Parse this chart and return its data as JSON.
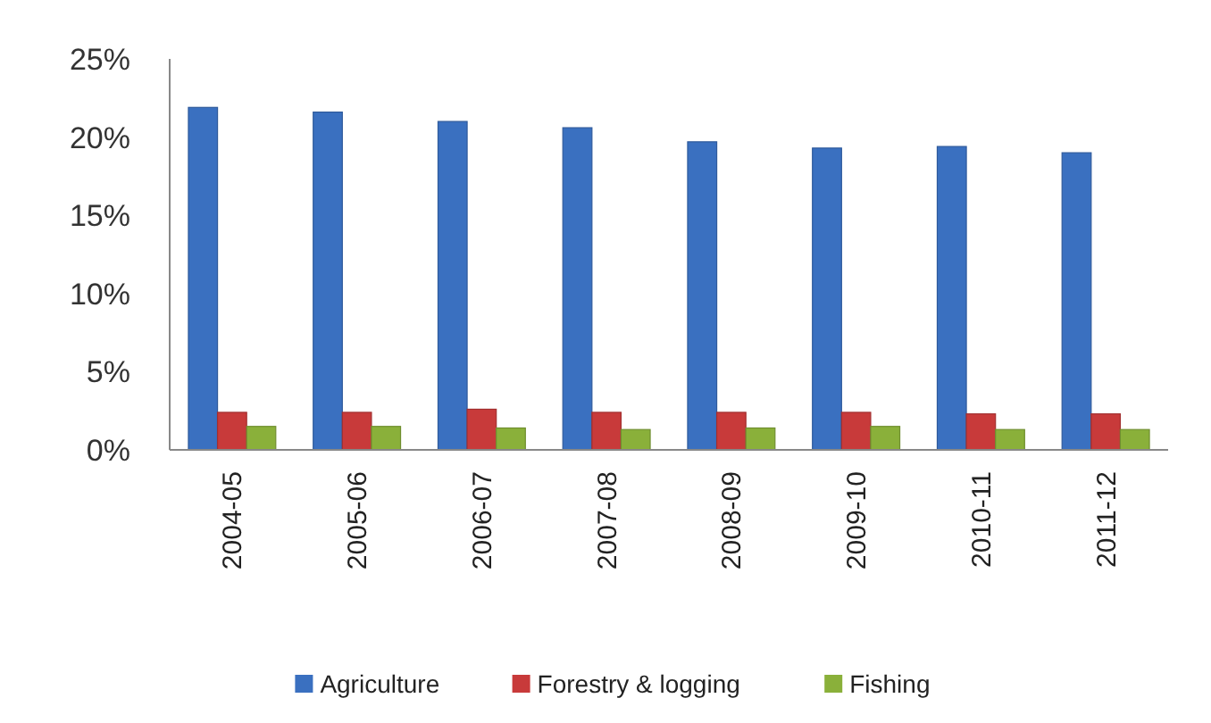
{
  "chart_data": {
    "type": "bar",
    "categories": [
      "2004-05",
      "2005-06",
      "2006-07",
      "2007-08",
      "2008-09",
      "2009-10",
      "2010-11",
      "2011-12"
    ],
    "series": [
      {
        "name": "Agriculture",
        "color": "#3a70c0",
        "values": [
          21.9,
          21.6,
          21.0,
          20.6,
          19.7,
          19.3,
          19.4,
          19.0
        ]
      },
      {
        "name": "Forestry & logging",
        "color": "#c83a3a",
        "values": [
          2.4,
          2.4,
          2.6,
          2.4,
          2.4,
          2.4,
          2.3,
          2.3
        ]
      },
      {
        "name": "Fishing",
        "color": "#8ab03a",
        "values": [
          1.5,
          1.5,
          1.4,
          1.3,
          1.4,
          1.5,
          1.3,
          1.3
        ]
      }
    ],
    "ylim": [
      0,
      25
    ],
    "yticks": [
      {
        "value": 0,
        "label": "0%"
      },
      {
        "value": 5,
        "label": "5%"
      },
      {
        "value": 10,
        "label": "10%"
      },
      {
        "value": 15,
        "label": "15%"
      },
      {
        "value": 20,
        "label": "20%"
      },
      {
        "value": 25,
        "label": "25%"
      }
    ],
    "grid": false,
    "legend": "bottom"
  }
}
